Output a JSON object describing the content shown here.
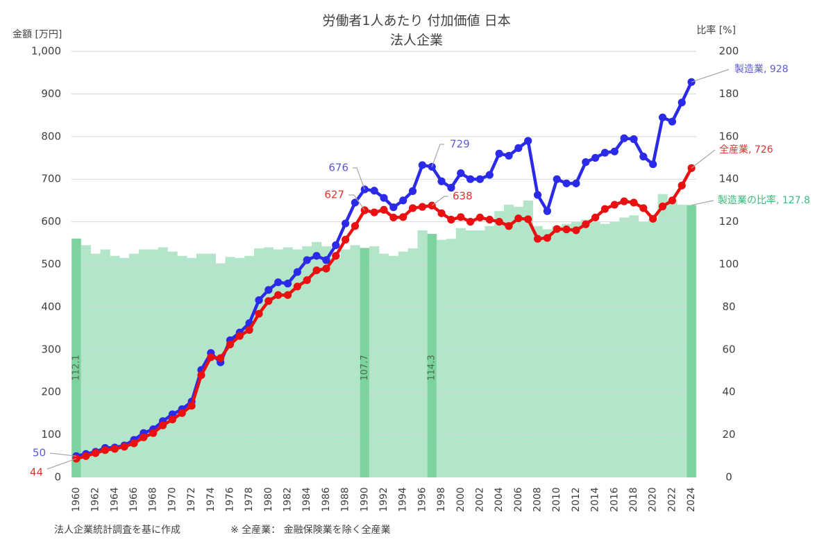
{
  "chart_data": {
    "type": "line",
    "title": "労働者1人あたり 付加価値 日本",
    "subtitle": "法人企業",
    "y_left_label": "金額 [万円]",
    "y_right_label": "比率 [%]",
    "ylim_left": [
      0,
      1000
    ],
    "ylim_right": [
      0,
      200
    ],
    "y_left_ticks": [
      "0",
      "100",
      "200",
      "300",
      "400",
      "500",
      "600",
      "700",
      "800",
      "900",
      "1,000"
    ],
    "y_right_ticks": [
      "0",
      "20",
      "40",
      "60",
      "80",
      "100",
      "120",
      "140",
      "160",
      "180",
      "200"
    ],
    "grid": true,
    "x": [
      1960,
      1961,
      1962,
      1963,
      1964,
      1965,
      1966,
      1967,
      1968,
      1969,
      1970,
      1971,
      1972,
      1973,
      1974,
      1975,
      1976,
      1977,
      1978,
      1979,
      1980,
      1981,
      1982,
      1983,
      1984,
      1985,
      1986,
      1987,
      1988,
      1989,
      1990,
      1991,
      1992,
      1993,
      1994,
      1995,
      1996,
      1997,
      1998,
      1999,
      2000,
      2001,
      2002,
      2003,
      2004,
      2005,
      2006,
      2007,
      2008,
      2009,
      2010,
      2011,
      2012,
      2013,
      2014,
      2015,
      2016,
      2017,
      2018,
      2019,
      2020,
      2021,
      2022,
      2023,
      2024
    ],
    "x_tick_labels": [
      "1960",
      "1962",
      "1964",
      "1966",
      "1968",
      "1970",
      "1972",
      "1974",
      "1976",
      "1978",
      "1980",
      "1982",
      "1984",
      "1986",
      "1988",
      "1990",
      "1992",
      "1994",
      "1996",
      "1998",
      "2000",
      "2002",
      "2004",
      "2006",
      "2008",
      "2010",
      "2012",
      "2014",
      "2016",
      "2018",
      "2020",
      "2022",
      "2024"
    ],
    "series": [
      {
        "name": "製造業",
        "color": "#2a2ae8",
        "axis": "left",
        "values": [
          50,
          55,
          60,
          69,
          70,
          75,
          88,
          104,
          113,
          132,
          148,
          160,
          178,
          252,
          292,
          270,
          322,
          340,
          362,
          416,
          440,
          458,
          455,
          482,
          510,
          520,
          510,
          545,
          596,
          645,
          676,
          673,
          656,
          634,
          650,
          672,
          733,
          729,
          695,
          680,
          714,
          700,
          700,
          710,
          760,
          755,
          773,
          790,
          663,
          625,
          700,
          690,
          690,
          740,
          750,
          762,
          765,
          796,
          794,
          753,
          735,
          845,
          835,
          880,
          928
        ]
      },
      {
        "name": "全産業",
        "color": "#e81010",
        "axis": "left",
        "values": [
          44,
          50,
          57,
          64,
          67,
          72,
          80,
          94,
          104,
          122,
          136,
          151,
          168,
          240,
          282,
          280,
          312,
          332,
          346,
          384,
          414,
          428,
          428,
          448,
          463,
          486,
          490,
          520,
          558,
          590,
          627,
          622,
          628,
          610,
          611,
          632,
          635,
          638,
          620,
          605,
          611,
          600,
          610,
          605,
          600,
          590,
          608,
          606,
          560,
          562,
          583,
          582,
          580,
          594,
          610,
          630,
          640,
          648,
          645,
          632,
          607,
          636,
          650,
          685,
          726
        ]
      },
      {
        "name": "製造業の比率",
        "color": "#b3e6c9",
        "axis": "right",
        "type": "bar",
        "values": [
          112.1,
          109,
          105,
          107,
          104,
          103,
          105,
          107,
          107,
          108,
          106,
          104,
          103,
          105,
          105,
          100.5,
          103.5,
          103,
          104,
          107.5,
          108,
          107,
          108,
          107,
          108.5,
          110.5,
          108.5,
          103,
          107,
          109,
          107.7,
          108.5,
          105,
          104,
          106,
          107.5,
          116,
          114.3,
          111.5,
          112,
          117,
          116,
          116,
          118,
          125,
          128,
          127,
          130,
          118,
          116.5,
          118,
          119,
          120,
          121,
          120,
          119,
          120,
          122,
          123,
          120,
          121,
          133,
          130,
          128,
          127.8
        ]
      }
    ],
    "highlight_bars": [
      {
        "year": 1960,
        "value_label": "112.1"
      },
      {
        "year": 1990,
        "value_label": "107.7"
      },
      {
        "year": 1997,
        "value_label": "114.3"
      },
      {
        "year": 2024,
        "value_label": ""
      }
    ],
    "highlight_bar_color": "#7dd3a0",
    "annotations": [
      {
        "text": "50",
        "series": "製造業",
        "year": 1960,
        "color": "#5a5ad8"
      },
      {
        "text": "44",
        "series": "全産業",
        "year": 1960,
        "color": "#e03030"
      },
      {
        "text": "676",
        "series": "製造業",
        "year": 1990,
        "color": "#5a5ad8"
      },
      {
        "text": "729",
        "series": "製造業",
        "year": 1997,
        "color": "#5a5ad8"
      },
      {
        "text": "627",
        "series": "全産業",
        "year": 1990,
        "color": "#e03030"
      },
      {
        "text": "638",
        "series": "全産業",
        "year": 1997,
        "color": "#e03030"
      },
      {
        "text": "製造業, 928",
        "series": "製造業",
        "year": 2024,
        "color": "#5a5ad8"
      },
      {
        "text": "全産業, 726",
        "series": "全産業",
        "year": 2024,
        "color": "#e03030"
      },
      {
        "text": "製造業の比率, 127.8",
        "series": "製造業の比率",
        "year": 2024,
        "color": "#3cb878"
      }
    ]
  },
  "footer": {
    "source": "法人企業統計調査を基に作成",
    "note": "※ 全産業： 金融保険業を除く全産業"
  }
}
